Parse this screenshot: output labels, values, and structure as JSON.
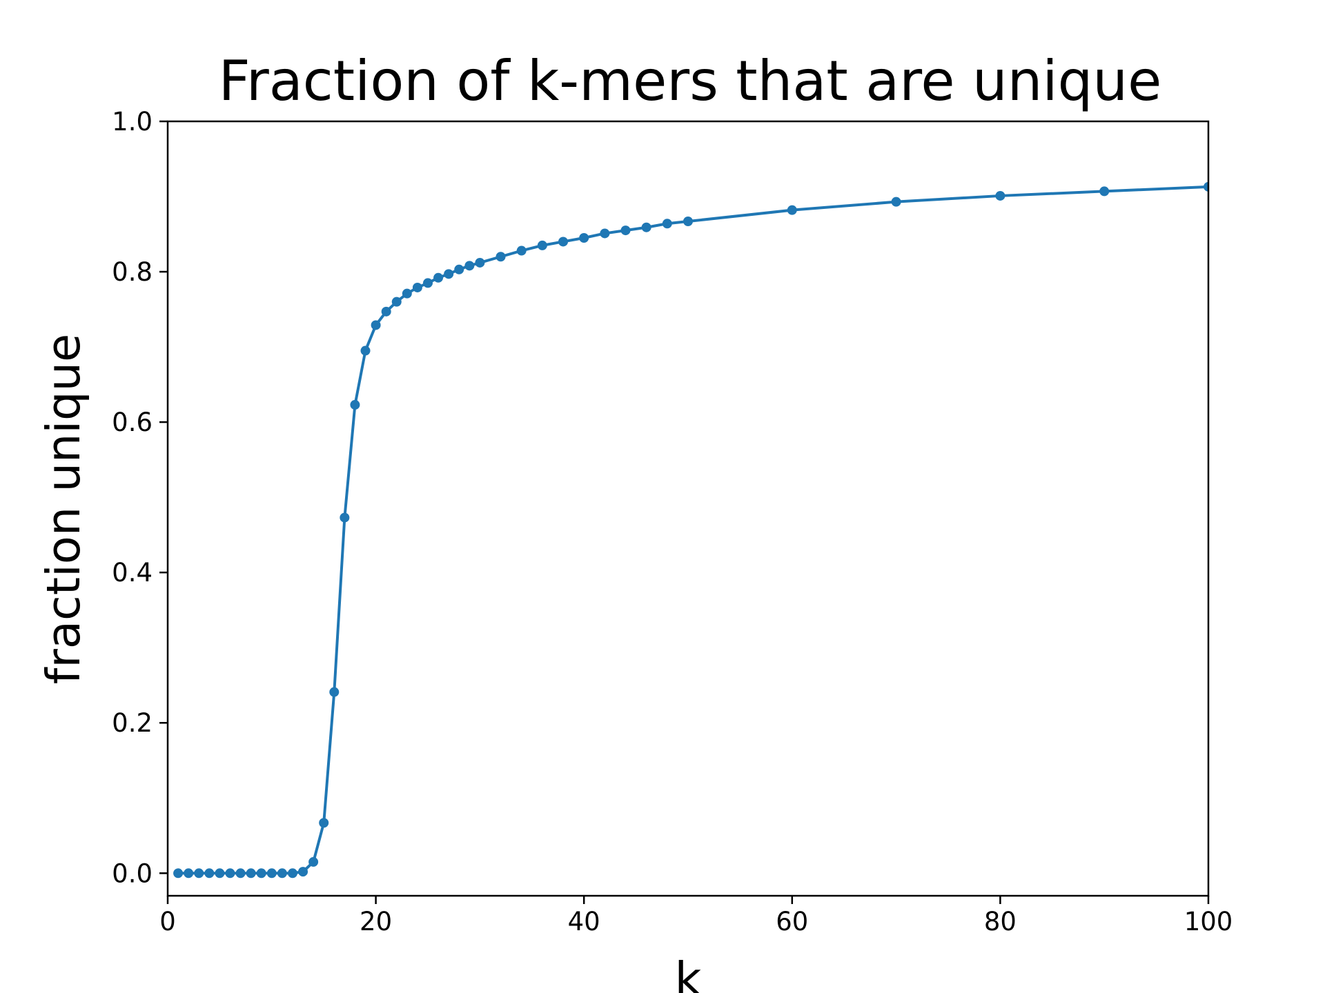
{
  "chart_data": {
    "type": "line",
    "title": "Fraction of k-mers that are unique",
    "xlabel": "k",
    "ylabel": "fraction unique",
    "xlim": [
      0,
      100
    ],
    "ylim": [
      -0.03,
      1.0
    ],
    "x_ticks": [
      0,
      20,
      40,
      60,
      80,
      100
    ],
    "x_tick_labels": [
      "0",
      "20",
      "40",
      "60",
      "80",
      "100"
    ],
    "y_ticks": [
      0.0,
      0.2,
      0.4,
      0.6,
      0.8,
      1.0
    ],
    "y_tick_labels": [
      "0.0",
      "0.2",
      "0.4",
      "0.6",
      "0.8",
      "1.0"
    ],
    "grid": false,
    "legend": "none",
    "color": "#1f77b4",
    "marker": "dot",
    "series": [
      {
        "x": [
          1,
          2,
          3,
          4,
          5,
          6,
          7,
          8,
          9,
          10,
          11,
          12,
          13,
          14,
          15,
          16,
          17,
          18,
          19,
          20,
          21,
          22,
          23,
          24,
          25,
          26,
          27,
          28,
          29,
          30,
          32,
          34,
          36,
          38,
          40,
          42,
          44,
          46,
          48,
          50,
          60,
          70,
          80,
          90,
          100
        ],
        "y": [
          0.0,
          0.0,
          0.0,
          0.0,
          0.0,
          0.0,
          0.0,
          0.0,
          0.0,
          0.0,
          0.0,
          0.0,
          0.002,
          0.015,
          0.067,
          0.241,
          0.473,
          0.623,
          0.695,
          0.729,
          0.747,
          0.76,
          0.771,
          0.779,
          0.785,
          0.792,
          0.797,
          0.803,
          0.808,
          0.812,
          0.82,
          0.828,
          0.835,
          0.84,
          0.845,
          0.851,
          0.855,
          0.859,
          0.864,
          0.867,
          0.882,
          0.893,
          0.901,
          0.907,
          0.913
        ]
      }
    ]
  }
}
